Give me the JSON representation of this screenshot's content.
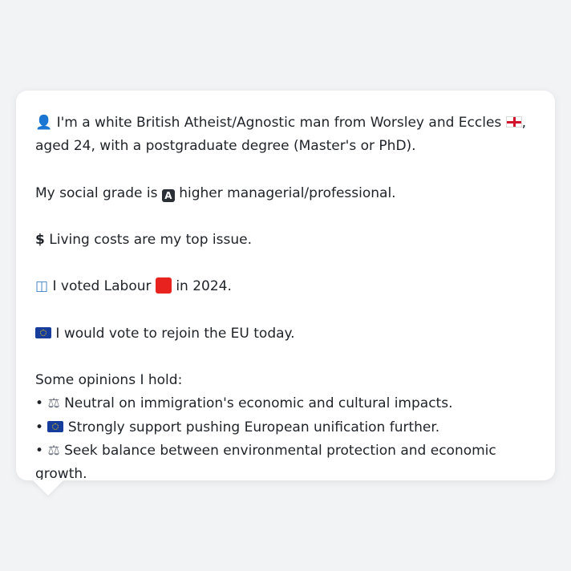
{
  "profile": {
    "intro": {
      "icon": "person-silhouette-icon",
      "text_before_flag": " I'm a white British Atheist/Agnostic man from Worsley and Eccles ",
      "flag": "england-flag-icon",
      "text_after_flag": ", aged 24, with a postgraduate degree (Master's or PhD)."
    },
    "social_grade": {
      "prefix": "My social grade is ",
      "badge": "A",
      "suffix": " higher managerial/professional."
    },
    "top_issue": {
      "icon": "dollar-sign-icon",
      "text": " Living costs are my top issue."
    },
    "vote": {
      "icon": "ballot-box-icon",
      "prefix": " I voted Labour ",
      "party_color_icon": "red-square-icon",
      "suffix": " in 2024."
    },
    "eu": {
      "icon": "eu-flag-icon",
      "text": " I would vote to rejoin the EU today."
    },
    "opinions": {
      "heading": "Some opinions I hold:",
      "items": [
        {
          "bullet": "•",
          "icon": "scales-icon",
          "text": " Neutral on immigration's economic and cultural impacts."
        },
        {
          "bullet": "•",
          "icon": "eu-flag-icon",
          "text": " Strongly support pushing European unification further."
        },
        {
          "bullet": "•",
          "icon": "scales-icon",
          "text": " Seek balance between environmental protection and economic growth."
        }
      ]
    }
  },
  "colors": {
    "background": "#f2f3f5",
    "card": "#ffffff",
    "text": "#1f2328",
    "labour_red": "#e8221f",
    "eu_blue": "#163d9b"
  }
}
